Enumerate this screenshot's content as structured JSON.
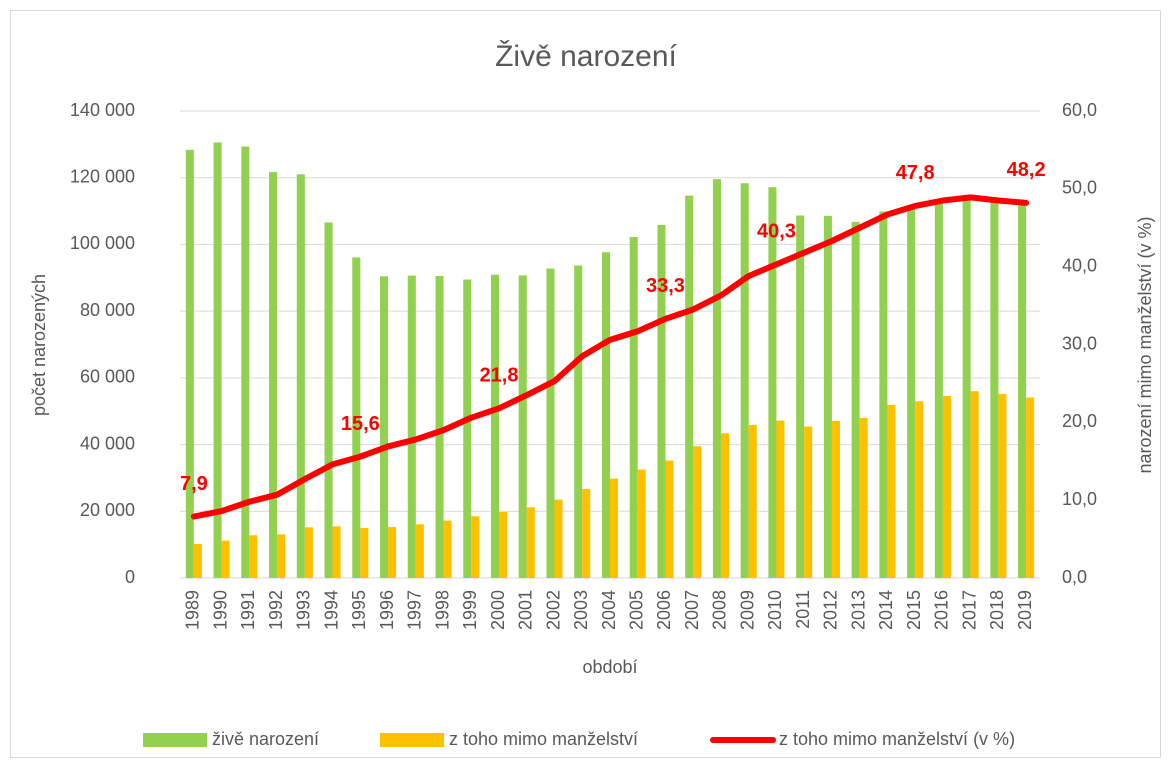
{
  "chart_data": {
    "type": "bar_line",
    "title": "Živě narození",
    "x_label": "období",
    "y_label": "počet narozených",
    "y2_label": "narození mimo manželství (v %)",
    "categories": [
      "1989",
      "1990",
      "1991",
      "1992",
      "1993",
      "1994",
      "1995",
      "1996",
      "1997",
      "1998",
      "1999",
      "2000",
      "2001",
      "2002",
      "2003",
      "2004",
      "2005",
      "2006",
      "2007",
      "2008",
      "2009",
      "2010",
      "2011",
      "2012",
      "2013",
      "2014",
      "2015",
      "2016",
      "2017",
      "2018",
      "2019"
    ],
    "series": [
      {
        "name": "živě narození",
        "color": "#92d050",
        "type": "bar",
        "axis": "y",
        "values": [
          128356,
          130564,
          129354,
          121705,
          121025,
          106579,
          96097,
          90446,
          90657,
          90535,
          89471,
          90910,
          90715,
          92786,
          93685,
          97664,
          102211,
          105831,
          114632,
          119570,
          118348,
          117153,
          108673,
          108576,
          106751,
          109860,
          110764,
          112663,
          114405,
          114036,
          112231
        ]
      },
      {
        "name": "z toho mimo manželství",
        "color": "#ffc000",
        "type": "bar",
        "axis": "y",
        "values": [
          10200,
          11200,
          12800,
          13100,
          15200,
          15500,
          15000,
          15300,
          16100,
          17200,
          18500,
          19800,
          21200,
          23500,
          26700,
          29800,
          32500,
          35200,
          39500,
          43400,
          45900,
          47200,
          45400,
          47100,
          48000,
          51900,
          53000,
          54600,
          56000,
          55200,
          54100
        ]
      },
      {
        "name": "z toho mimo manželství (v %)",
        "color": "#ff0000",
        "type": "line",
        "axis": "y2",
        "values": [
          7.9,
          8.6,
          9.8,
          10.7,
          12.7,
          14.6,
          15.6,
          16.9,
          17.8,
          19.0,
          20.6,
          21.8,
          23.5,
          25.3,
          28.5,
          30.6,
          31.7,
          33.3,
          34.5,
          36.3,
          38.8,
          40.3,
          41.8,
          43.3,
          45.0,
          46.7,
          47.8,
          48.5,
          48.9,
          48.5,
          48.2
        ],
        "value_labels": [
          "7,9",
          null,
          null,
          null,
          null,
          null,
          "15,6",
          null,
          null,
          null,
          null,
          "21,8",
          null,
          null,
          null,
          null,
          null,
          "33,3",
          null,
          null,
          null,
          "40,3",
          null,
          null,
          null,
          null,
          "47,8",
          null,
          null,
          null,
          "48,2"
        ]
      }
    ],
    "ylim": [
      0,
      140000
    ],
    "yticks": [
      {
        "value": 0,
        "label": "0"
      },
      {
        "value": 20000,
        "label": "20 000"
      },
      {
        "value": 40000,
        "label": "40 000"
      },
      {
        "value": 60000,
        "label": "60 000"
      },
      {
        "value": 80000,
        "label": "80 000"
      },
      {
        "value": 100000,
        "label": "100 000"
      },
      {
        "value": 120000,
        "label": "120 000"
      },
      {
        "value": 140000,
        "label": "140 000"
      }
    ],
    "y2lim": [
      0,
      60
    ],
    "y2ticks": [
      {
        "value": 0,
        "label": "0,0"
      },
      {
        "value": 10,
        "label": "10,0"
      },
      {
        "value": 20,
        "label": "20,0"
      },
      {
        "value": 30,
        "label": "30,0"
      },
      {
        "value": 40,
        "label": "40,0"
      },
      {
        "value": 50,
        "label": "50,0"
      },
      {
        "value": 60,
        "label": "60,0"
      }
    ],
    "grid": true,
    "legend": "bottom"
  }
}
